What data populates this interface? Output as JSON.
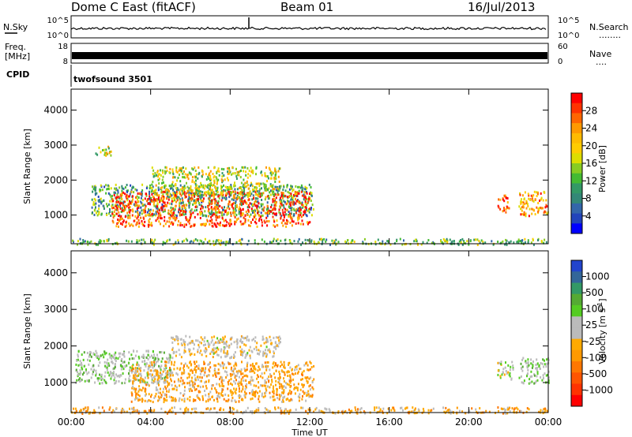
{
  "header": {
    "station": "Dome C East (fitACF)",
    "beam": "Beam 01",
    "date": "16/Jul/2013"
  },
  "noise_panel": {
    "left_label": "N.Sky",
    "left_ticks": [
      "10^5",
      "10^0"
    ],
    "right_ticks": [
      "10^5",
      "10^0"
    ],
    "right_label": "N.Search",
    "right_dots": "........"
  },
  "freq_panel": {
    "left_label_1": "Freq.",
    "left_label_2": "[MHz]",
    "left_ticks": [
      "18",
      "8"
    ],
    "right_ticks": [
      "60",
      "0"
    ],
    "right_label": "Nave",
    "right_dots": "...."
  },
  "cpid_panel": {
    "label": "CPID",
    "program": "twofsound 3501"
  },
  "colorbars": {
    "power": {
      "title": "Power [dB]",
      "labels": [
        "28",
        "24",
        "20",
        "16",
        "12",
        "8",
        "4"
      ],
      "colors": [
        "#ff0000",
        "#ff3300",
        "#ff6600",
        "#ff9900",
        "#ffbb00",
        "#ffcc00",
        "#dddd00",
        "#88cc22",
        "#44bb33",
        "#339966",
        "#338877",
        "#3366aa",
        "#2244bb",
        "#0000ff"
      ]
    },
    "velocity": {
      "title": "Velocity [m s",
      "title_sup": "-1",
      "title_end": "]",
      "labels": [
        "1000",
        "500",
        "100",
        "25",
        "-25",
        "-100",
        "-500",
        "-1000"
      ],
      "colors": [
        "#2244cc",
        "#336699",
        "#339966",
        "#55aa33",
        "#55cc22",
        "#bbbbbb",
        "#bbbbbb",
        "#ffaa00",
        "#ff9900",
        "#ff7700",
        "#ff5500",
        "#ff3300",
        "#ff0000"
      ]
    }
  },
  "axes": {
    "ylabel": "Slant Range [km]",
    "xlabel": "Time UT",
    "x_ticks": [
      "00:00",
      "04:00",
      "08:00",
      "12:00",
      "16:00",
      "20:00",
      "00:00"
    ],
    "y_ticks": [
      "1000",
      "2000",
      "3000",
      "4000"
    ]
  },
  "chart_data": [
    {
      "type": "heatmap",
      "title": "",
      "quantity": "Power [dB]",
      "xlabel": "",
      "ylabel": "Slant Range [km]",
      "x_unit": "hours UT",
      "xlim": [
        0,
        24
      ],
      "ylim": [
        180,
        4600
      ],
      "color_scale": [
        0,
        30
      ],
      "regions": [
        {
          "t0": 1.0,
          "t1": 12.2,
          "r0": 1000,
          "r1": 1900,
          "value": 10
        },
        {
          "t0": 2.0,
          "t1": 12.0,
          "r0": 700,
          "r1": 1700,
          "value": 26
        },
        {
          "t0": 4.0,
          "t1": 10.5,
          "r0": 1600,
          "r1": 2400,
          "value": 16
        },
        {
          "t0": 1.2,
          "t1": 2.0,
          "r0": 2700,
          "r1": 3000,
          "value": 16
        },
        {
          "t0": 21.4,
          "t1": 22.0,
          "r0": 1100,
          "r1": 1600,
          "value": 26
        },
        {
          "t0": 22.5,
          "t1": 24.0,
          "r0": 1000,
          "r1": 1700,
          "value": 22
        },
        {
          "t0": 0.0,
          "t1": 24.0,
          "r0": 180,
          "r1": 350,
          "value": 12
        }
      ]
    },
    {
      "type": "heatmap",
      "title": "",
      "quantity": "Velocity [m s-1]",
      "xlabel": "Time UT",
      "ylabel": "Slant Range [km]",
      "x_unit": "hours UT",
      "xlim": [
        0,
        24
      ],
      "ylim": [
        180,
        4600
      ],
      "color_scale": [
        -1000,
        1000
      ],
      "regions": [
        {
          "t0": 0.2,
          "t1": 5.0,
          "r0": 1000,
          "r1": 1900,
          "value": 200
        },
        {
          "t0": 3.0,
          "t1": 12.2,
          "r0": 500,
          "r1": 1600,
          "value": -200
        },
        {
          "t0": 5.0,
          "t1": 10.5,
          "r0": 1700,
          "r1": 2300,
          "value": 0
        },
        {
          "t0": 21.4,
          "t1": 22.2,
          "r0": 1100,
          "r1": 1600,
          "value": 100
        },
        {
          "t0": 22.5,
          "t1": 24.0,
          "r0": 1000,
          "r1": 1700,
          "value": 200
        },
        {
          "t0": 0.0,
          "t1": 24.0,
          "r0": 180,
          "r1": 350,
          "value": -200
        }
      ]
    }
  ]
}
